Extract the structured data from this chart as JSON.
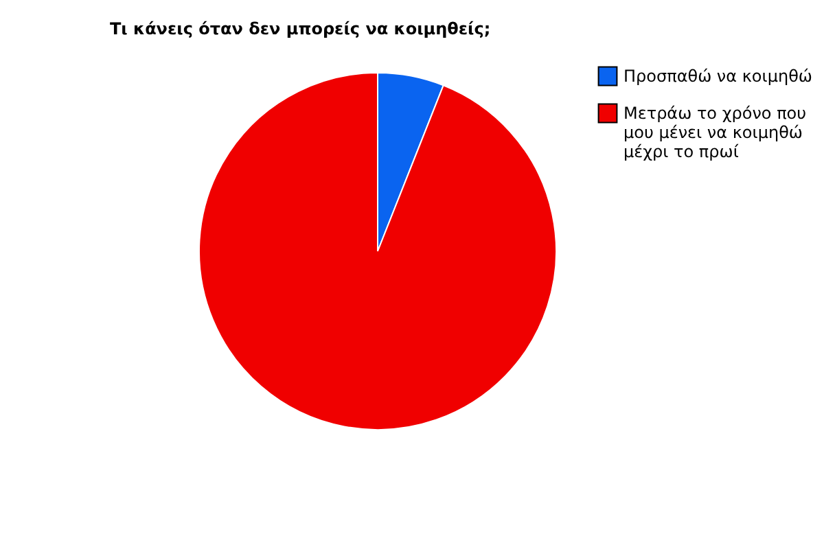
{
  "chart_data": {
    "type": "pie",
    "title": "Τι κάνεις όταν δεν μπορείς να κοιμηθείς;",
    "categories": [
      "Προσπαθώ να κοιμηθώ",
      "Μετράω το χρόνο που μου μένει να κοιμηθώ μέχρι το πρωί"
    ],
    "values": [
      6,
      94
    ],
    "colors": [
      "#0a64f0",
      "#f00000"
    ],
    "legend": "right"
  }
}
